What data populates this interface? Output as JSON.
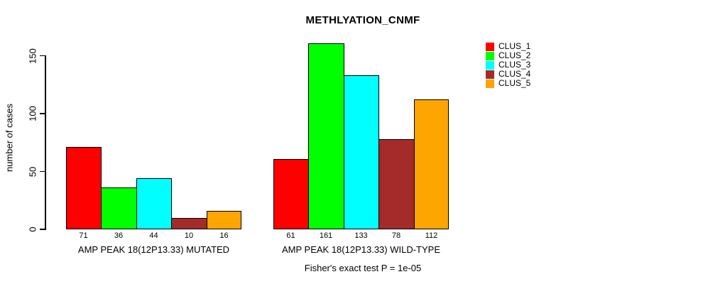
{
  "title": "METHLYATION_CNMF",
  "chart_data": {
    "type": "bar",
    "title": "METHLYATION_CNMF",
    "xlabel": "",
    "ylabel": "number of cases",
    "ylim": [
      0,
      165
    ],
    "yticks": [
      0,
      50,
      100,
      150
    ],
    "grid": false,
    "legend_position": "right",
    "categories": [
      "AMP PEAK 18(12P13.33) MUTATED",
      "AMP PEAK 18(12P13.33) WILD-TYPE"
    ],
    "series": [
      {
        "name": "CLUS_1",
        "color": "#ff0000",
        "values": [
          71,
          61
        ]
      },
      {
        "name": "CLUS_2",
        "color": "#00ff00",
        "values": [
          36,
          161
        ]
      },
      {
        "name": "CLUS_3",
        "color": "#00ffff",
        "values": [
          44,
          133
        ]
      },
      {
        "name": "CLUS_4",
        "color": "#a52a2a",
        "values": [
          10,
          78
        ]
      },
      {
        "name": "CLUS_5",
        "color": "#ffa500",
        "values": [
          16,
          112
        ]
      }
    ],
    "bar_value_labels": true,
    "annotation": "Fisher's exact test P = 1e-05"
  }
}
